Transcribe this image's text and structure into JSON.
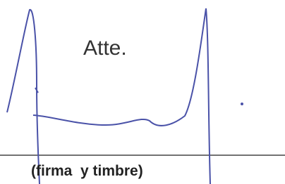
{
  "closing": "Atte.",
  "caption": "(firma  y timbre)"
}
